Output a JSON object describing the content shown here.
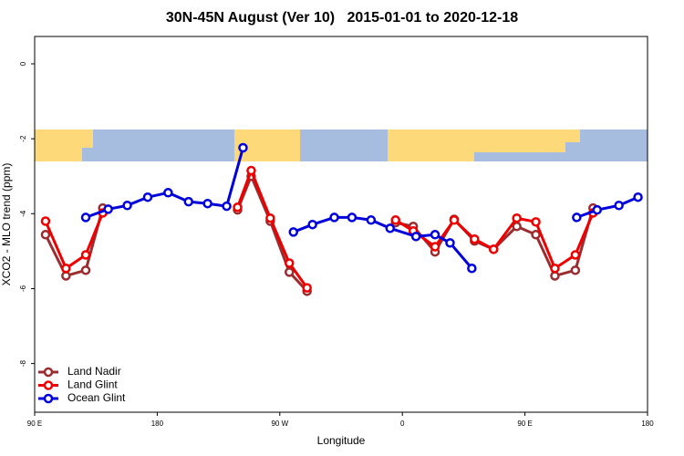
{
  "chart_data": {
    "type": "line",
    "title": "30N-45N August (Ver 10)   2015-01-01 to 2020-12-18",
    "x_label": "Longitude",
    "y_label": "XCO2 - MLO trend (ppm)",
    "xlim": [
      90,
      540
    ],
    "xticks": [
      {
        "value": 90,
        "label": "90 E"
      },
      180,
      {
        "value": 270,
        "label": "90 W"
      },
      {
        "value": 360,
        "label": "0"
      },
      {
        "value": 450,
        "label": "90 E"
      },
      {
        "value": 540,
        "label": "180"
      }
    ],
    "ylim": [
      -9.3,
      0.73
    ],
    "yticks": [
      0,
      -2,
      -4,
      -6,
      -8
    ],
    "legend": "bottom-left",
    "series": [
      {
        "name": "Land Nadir",
        "color": "#9b2d30",
        "x": [
          98,
          113,
          127.5,
          140,
          null,
          239,
          249,
          263,
          277,
          290,
          null,
          355,
          368,
          384,
          398,
          413,
          427,
          444,
          458,
          472,
          487,
          500
        ],
        "values": [
          -4.56,
          -5.66,
          -5.51,
          -3.85,
          null,
          -3.9,
          -3.0,
          -4.2,
          -5.56,
          -6.07,
          null,
          -4.24,
          -4.34,
          -5.02,
          -4.15,
          -4.73,
          -4.95,
          -4.34,
          -4.56,
          -5.66,
          -5.51,
          -3.85
        ]
      },
      {
        "name": "Land Glint",
        "color": "#ee0000",
        "x": [
          98,
          113,
          127.5,
          140,
          null,
          239,
          249,
          263,
          277,
          290,
          null,
          355,
          368,
          384,
          398,
          413,
          427,
          444,
          458,
          472,
          487,
          500
        ],
        "values": [
          -4.2,
          -5.46,
          -5.1,
          -3.98,
          null,
          -3.83,
          -2.85,
          -4.12,
          -5.32,
          -5.98,
          null,
          -4.17,
          -4.46,
          -4.88,
          -4.17,
          -4.68,
          -4.95,
          -4.12,
          -4.22,
          -5.46,
          -5.1,
          -3.98
        ]
      },
      {
        "name": "Ocean Glint",
        "color": "#0000dd",
        "x": [
          127.5,
          144,
          158,
          173,
          188,
          203,
          217,
          231,
          243,
          null,
          280,
          294,
          310,
          323,
          337,
          351,
          370,
          384,
          395,
          411,
          null,
          488,
          503,
          519,
          533
        ],
        "values": [
          -4.1,
          -3.88,
          -3.78,
          -3.56,
          -3.44,
          -3.68,
          -3.73,
          -3.8,
          -2.24,
          null,
          -4.49,
          -4.29,
          -4.1,
          -4.1,
          -4.17,
          -4.39,
          -4.61,
          -4.56,
          -4.78,
          -5.46,
          null,
          -4.1,
          -3.9,
          -3.78,
          -3.56
        ]
      }
    ]
  }
}
